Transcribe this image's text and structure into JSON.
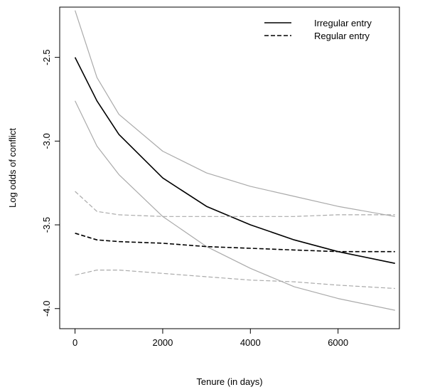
{
  "chart_data": {
    "type": "line",
    "title": "",
    "xlabel": "Tenure (in days)",
    "ylabel": "Log odds of conflict",
    "xlim": [
      -350,
      7400
    ],
    "ylim": [
      -4.12,
      -2.2
    ],
    "x_ticks": [
      0,
      2000,
      4000,
      6000
    ],
    "x_tick_labels": [
      "0",
      "2000",
      "4000",
      "6000"
    ],
    "y_ticks": [
      -2.5,
      -3.0,
      -3.5,
      -4.0
    ],
    "y_tick_labels": [
      "-2.5",
      "-3.0",
      "-3.5",
      "-4.0"
    ],
    "grid": false,
    "legend_position": "top-right",
    "legend": [
      {
        "label": "Irregular entry",
        "style": "solid",
        "color": "#000000"
      },
      {
        "label": "Regular entry",
        "style": "dashed",
        "color": "#000000"
      }
    ],
    "series": [
      {
        "name": "Irregular entry",
        "role": "estimate",
        "style": "solid",
        "color": "#000000",
        "x": [
          0,
          500,
          1000,
          2000,
          3000,
          4000,
          5000,
          6000,
          7300
        ],
        "y": [
          -2.5,
          -2.76,
          -2.96,
          -3.22,
          -3.39,
          -3.5,
          -3.59,
          -3.66,
          -3.73
        ]
      },
      {
        "name": "",
        "role": "upper-bound",
        "style": "solid",
        "color": "#aaaaaa",
        "x": [
          0,
          500,
          1000,
          2000,
          3000,
          4000,
          5000,
          6000,
          7300
        ],
        "y": [
          -2.22,
          -2.62,
          -2.84,
          -3.06,
          -3.19,
          -3.27,
          -3.33,
          -3.39,
          -3.45
        ]
      },
      {
        "name": "",
        "role": "lower-bound",
        "style": "solid",
        "color": "#aaaaaa",
        "x": [
          0,
          500,
          1000,
          2000,
          3000,
          4000,
          5000,
          6000,
          7300
        ],
        "y": [
          -2.76,
          -3.03,
          -3.2,
          -3.45,
          -3.63,
          -3.76,
          -3.87,
          -3.94,
          -4.01
        ]
      },
      {
        "name": "Regular entry",
        "role": "estimate",
        "style": "dashed",
        "color": "#000000",
        "x": [
          0,
          500,
          1000,
          2000,
          3000,
          4000,
          5000,
          6000,
          7300
        ],
        "y": [
          -3.55,
          -3.59,
          -3.6,
          -3.61,
          -3.63,
          -3.64,
          -3.65,
          -3.66,
          -3.66
        ]
      },
      {
        "name": "",
        "role": "upper-bound",
        "style": "dashed",
        "color": "#aaaaaa",
        "x": [
          0,
          500,
          1000,
          2000,
          3000,
          4000,
          5000,
          6000,
          7300
        ],
        "y": [
          -3.3,
          -3.42,
          -3.44,
          -3.45,
          -3.45,
          -3.45,
          -3.45,
          -3.44,
          -3.44
        ]
      },
      {
        "name": "",
        "role": "lower-bound",
        "style": "dashed",
        "color": "#aaaaaa",
        "x": [
          0,
          500,
          1000,
          2000,
          3000,
          4000,
          5000,
          6000,
          7300
        ],
        "y": [
          -3.8,
          -3.77,
          -3.77,
          -3.79,
          -3.81,
          -3.83,
          -3.84,
          -3.86,
          -3.88
        ]
      }
    ]
  }
}
